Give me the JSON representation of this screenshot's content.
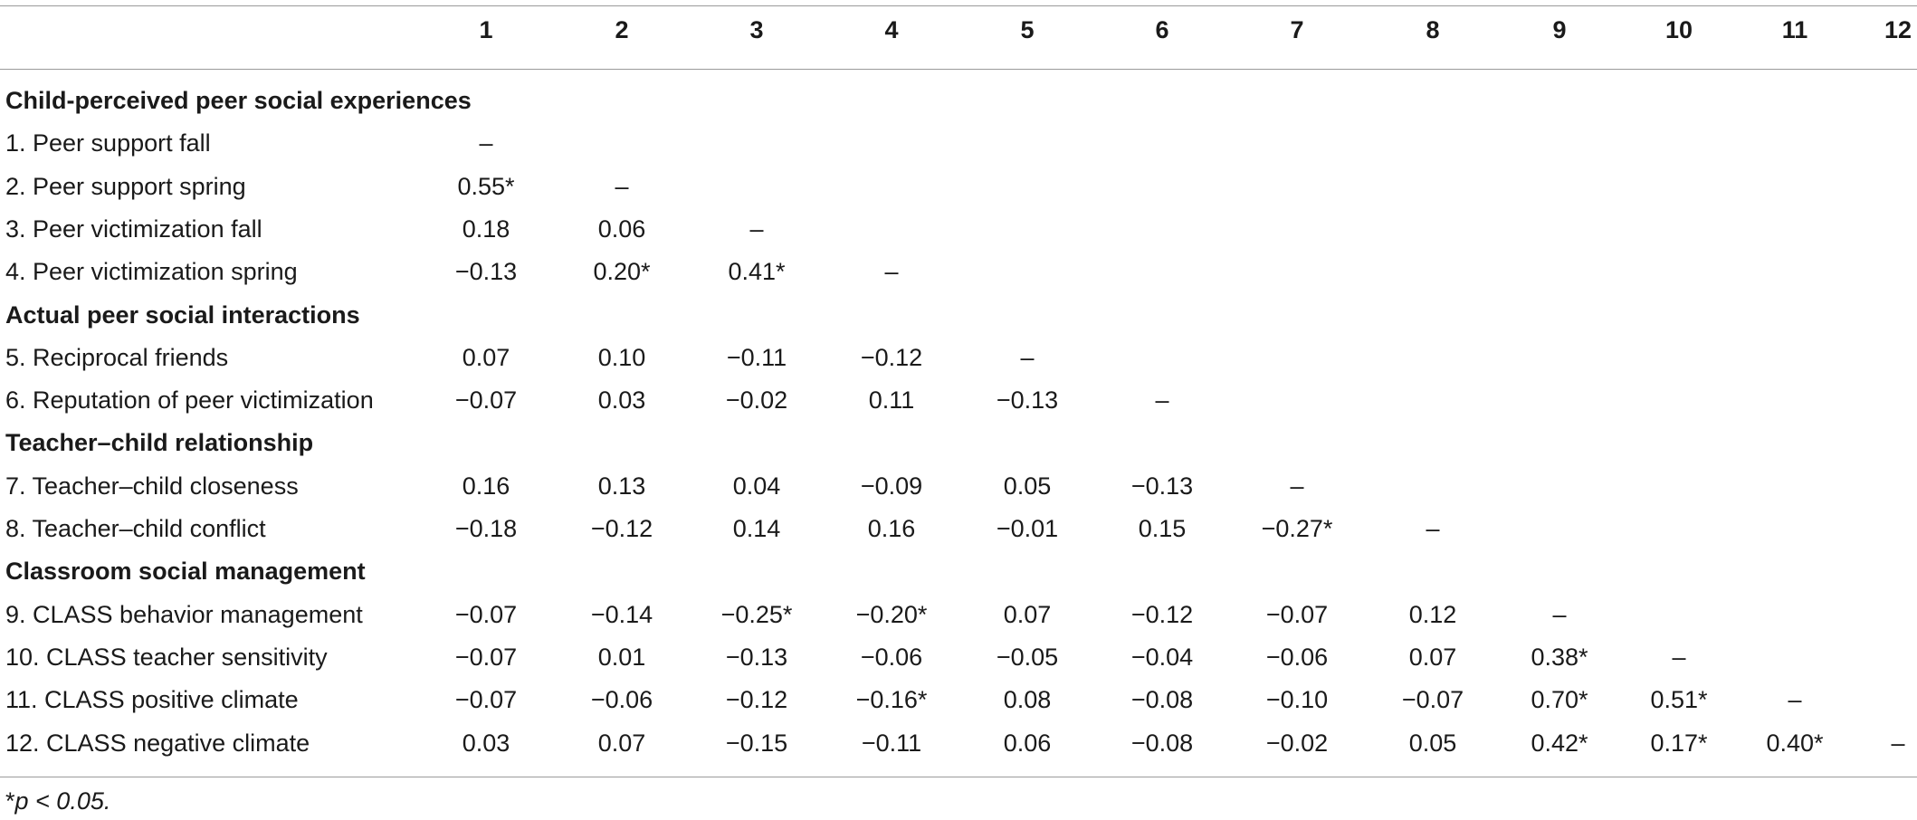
{
  "table": {
    "columns": [
      "1",
      "2",
      "3",
      "4",
      "5",
      "6",
      "7",
      "8",
      "9",
      "10",
      "11",
      "12"
    ],
    "rows": [
      {
        "type": "section",
        "label": "Child-perceived peer social experiences"
      },
      {
        "type": "data",
        "label": "1. Peer support fall",
        "values": [
          "–"
        ]
      },
      {
        "type": "data",
        "label": "2. Peer support spring",
        "values": [
          "0.55*",
          "–"
        ]
      },
      {
        "type": "data",
        "label": "3. Peer victimization fall",
        "values": [
          "0.18",
          "0.06",
          "–"
        ]
      },
      {
        "type": "data",
        "label": "4. Peer victimization spring",
        "values": [
          "−0.13",
          "0.20*",
          "0.41*",
          "–"
        ]
      },
      {
        "type": "section",
        "label": "Actual peer social interactions"
      },
      {
        "type": "data",
        "label": "5. Reciprocal friends",
        "values": [
          "0.07",
          "0.10",
          "−0.11",
          "−0.12",
          "–"
        ]
      },
      {
        "type": "data",
        "label": "6. Reputation of peer victimization",
        "values": [
          "−0.07",
          "0.03",
          "−0.02",
          "0.11",
          "−0.13",
          "–"
        ]
      },
      {
        "type": "section",
        "label": "Teacher–child relationship"
      },
      {
        "type": "data",
        "label": "7. Teacher–child closeness",
        "values": [
          "0.16",
          "0.13",
          "0.04",
          "−0.09",
          "0.05",
          "−0.13",
          "–"
        ]
      },
      {
        "type": "data",
        "label": "8. Teacher–child conflict",
        "values": [
          "−0.18",
          "−0.12",
          "0.14",
          "0.16",
          "−0.01",
          "0.15",
          "−0.27*",
          "–"
        ]
      },
      {
        "type": "section",
        "label": "Classroom social management"
      },
      {
        "type": "data",
        "label": "9. CLASS behavior management",
        "values": [
          "−0.07",
          "−0.14",
          "−0.25*",
          "−0.20*",
          "0.07",
          "−0.12",
          "−0.07",
          "0.12",
          "–"
        ]
      },
      {
        "type": "data",
        "label": "10. CLASS teacher sensitivity",
        "values": [
          "−0.07",
          "0.01",
          "−0.13",
          "−0.06",
          "−0.05",
          "−0.04",
          "−0.06",
          "0.07",
          "0.38*",
          "–"
        ]
      },
      {
        "type": "data",
        "label": "11. CLASS positive climate",
        "values": [
          "−0.07",
          "−0.06",
          "−0.12",
          "−0.16*",
          "0.08",
          "−0.08",
          "−0.10",
          "−0.07",
          "0.70*",
          "0.51*",
          "–"
        ]
      },
      {
        "type": "data",
        "label": "12. CLASS negative climate",
        "values": [
          "0.03",
          "0.07",
          "−0.15",
          "−0.11",
          "0.06",
          "−0.08",
          "−0.02",
          "0.05",
          "0.42*",
          "0.17*",
          "0.40*",
          "–"
        ]
      }
    ],
    "footnote": "*p < 0.05."
  }
}
